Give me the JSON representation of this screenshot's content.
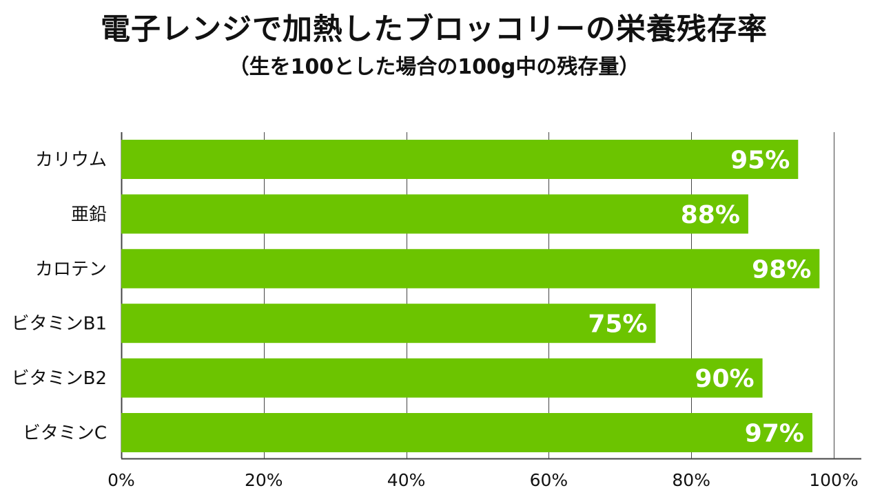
{
  "title": "電子レンジで加熱したブロッコリーの栄養残存率",
  "subtitle": "（生を100とした場合の100g中の残存量）",
  "colors": {
    "bar": "#6cc400",
    "bar_label": "#ffffff",
    "grid": "#444444",
    "text": "#111111"
  },
  "chart_data": {
    "type": "bar",
    "orientation": "horizontal",
    "title": "電子レンジで加熱したブロッコリーの栄養残存率",
    "subtitle": "（生を100とした場合の100g中の残存量）",
    "categories": [
      "カリウム",
      "亜鉛",
      "カロテン",
      "ビタミンB1",
      "ビタミンB2",
      "ビタミンC"
    ],
    "values": [
      95,
      88,
      98,
      75,
      90,
      97
    ],
    "value_labels": [
      "95%",
      "88%",
      "98%",
      "75%",
      "90%",
      "97%"
    ],
    "xlim": [
      0,
      100
    ],
    "xticks": [
      0,
      20,
      40,
      60,
      80,
      100
    ],
    "xtick_labels": [
      "0%",
      "20%",
      "40%",
      "60%",
      "80%",
      "100%"
    ],
    "xlabel": "",
    "ylabel": "",
    "grid": true,
    "legend": "none"
  }
}
